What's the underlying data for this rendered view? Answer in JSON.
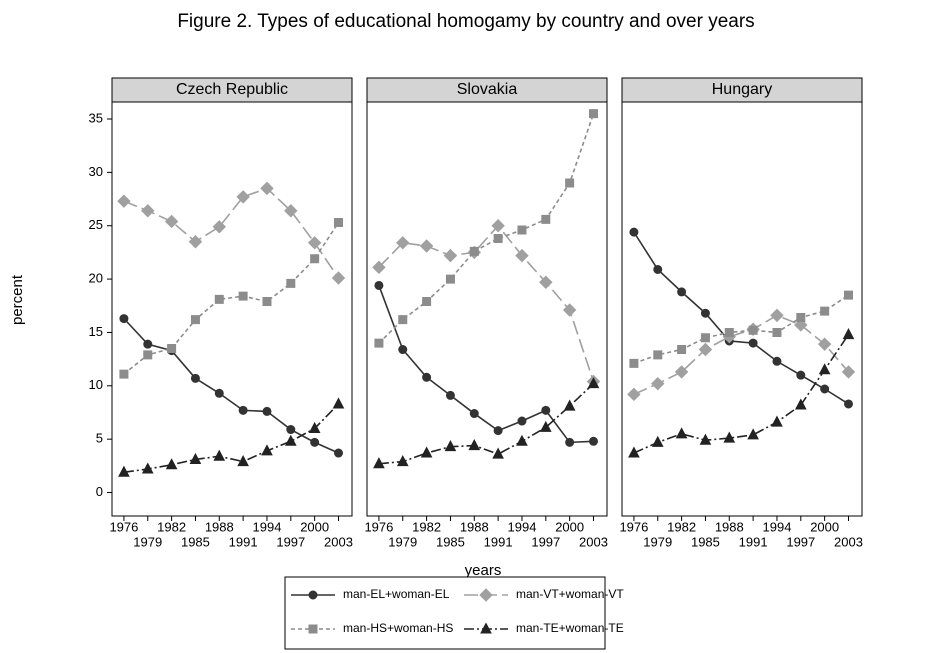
{
  "title": "Figure 2. Types of educational homogamy by country and over years",
  "y_label": "percent",
  "x_label": "years",
  "chart_data": [
    {
      "type": "line",
      "title": "Czech Republic",
      "x": [
        1976,
        1979,
        1982,
        1985,
        1988,
        1991,
        1994,
        1997,
        2000,
        2003
      ],
      "xlim": [
        1974.5,
        2004.7
      ],
      "xticks": [
        1976,
        1979,
        1982,
        1985,
        1988,
        1991,
        1994,
        1997,
        2000,
        2003
      ],
      "ylim": [
        -2.2,
        36.5
      ],
      "yticks": [
        0,
        5,
        10,
        15,
        20,
        25,
        30,
        35
      ],
      "series": [
        {
          "name": "man-EL+woman-EL",
          "color": "#333333",
          "marker": "circle",
          "dash": "solid",
          "values": [
            16.3,
            13.9,
            13.3,
            10.7,
            9.3,
            7.7,
            7.6,
            5.9,
            4.7,
            3.7
          ]
        },
        {
          "name": "man-VT+woman-VT",
          "color": "#a0a0a0",
          "marker": "diamond",
          "dash": "long-dash",
          "values": [
            27.3,
            26.4,
            25.4,
            23.5,
            24.9,
            27.7,
            28.5,
            26.4,
            23.4,
            20.1
          ]
        },
        {
          "name": "man-HS+woman-HS",
          "color": "#8c8c8c",
          "marker": "square",
          "dash": "short-dash",
          "values": [
            11.1,
            12.9,
            13.5,
            16.2,
            18.1,
            18.4,
            17.9,
            19.6,
            21.9,
            25.3
          ]
        },
        {
          "name": "man-TE+woman-TE",
          "color": "#222222",
          "marker": "triangle",
          "dash": "dash-dot",
          "values": [
            1.9,
            2.2,
            2.6,
            3.1,
            3.4,
            2.9,
            3.9,
            4.8,
            6.0,
            8.3
          ]
        }
      ]
    },
    {
      "type": "line",
      "title": "Slovakia",
      "x": [
        1976,
        1979,
        1982,
        1985,
        1988,
        1991,
        1994,
        1997,
        2000,
        2003
      ],
      "xlim": [
        1974.5,
        2004.7
      ],
      "xticks": [
        1976,
        1979,
        1982,
        1985,
        1988,
        1991,
        1994,
        1997,
        2000,
        2003
      ],
      "ylim": [
        -2.2,
        36.5
      ],
      "series": [
        {
          "name": "man-EL+woman-EL",
          "color": "#333333",
          "marker": "circle",
          "dash": "solid",
          "values": [
            19.4,
            13.4,
            10.8,
            9.1,
            7.4,
            5.8,
            6.7,
            7.7,
            4.7,
            4.8
          ]
        },
        {
          "name": "man-VT+woman-VT",
          "color": "#a0a0a0",
          "marker": "diamond",
          "dash": "long-dash",
          "values": [
            21.1,
            23.4,
            23.1,
            22.2,
            22.5,
            25.0,
            22.2,
            19.7,
            17.1,
            10.4
          ]
        },
        {
          "name": "man-HS+woman-HS",
          "color": "#8c8c8c",
          "marker": "square",
          "dash": "short-dash",
          "values": [
            14.0,
            16.2,
            17.9,
            20.0,
            22.6,
            23.8,
            24.6,
            25.6,
            29.0,
            35.5
          ]
        },
        {
          "name": "man-TE+woman-TE",
          "color": "#222222",
          "marker": "triangle",
          "dash": "dash-dot",
          "values": [
            2.7,
            2.9,
            3.7,
            4.3,
            4.4,
            3.6,
            4.8,
            6.1,
            8.1,
            10.2
          ]
        }
      ]
    },
    {
      "type": "line",
      "title": "Hungary",
      "x": [
        1976,
        1979,
        1982,
        1985,
        1988,
        1991,
        1994,
        1997,
        2000,
        2003
      ],
      "xlim": [
        1974.5,
        2004.7
      ],
      "xticks": [
        1976,
        1979,
        1982,
        1985,
        1988,
        1991,
        1994,
        1997,
        2000,
        2003
      ],
      "ylim": [
        -2.2,
        36.5
      ],
      "series": [
        {
          "name": "man-EL+woman-EL",
          "color": "#333333",
          "marker": "circle",
          "dash": "solid",
          "values": [
            24.4,
            20.9,
            18.8,
            16.8,
            14.2,
            14.0,
            12.3,
            11.0,
            9.7,
            8.3
          ]
        },
        {
          "name": "man-VT+woman-VT",
          "color": "#a0a0a0",
          "marker": "diamond",
          "dash": "long-dash",
          "values": [
            9.2,
            10.2,
            11.3,
            13.4,
            14.6,
            15.3,
            16.6,
            15.7,
            13.9,
            11.3
          ]
        },
        {
          "name": "man-HS+woman-HS",
          "color": "#8c8c8c",
          "marker": "square",
          "dash": "short-dash",
          "values": [
            12.1,
            12.9,
            13.4,
            14.5,
            15.0,
            15.2,
            15.0,
            16.4,
            17.0,
            18.5
          ]
        },
        {
          "name": "man-TE+woman-TE",
          "color": "#222222",
          "marker": "triangle",
          "dash": "dash-dot",
          "values": [
            3.7,
            4.7,
            5.5,
            4.9,
            5.1,
            5.4,
            6.6,
            8.2,
            11.5,
            14.8
          ]
        }
      ]
    }
  ]
}
